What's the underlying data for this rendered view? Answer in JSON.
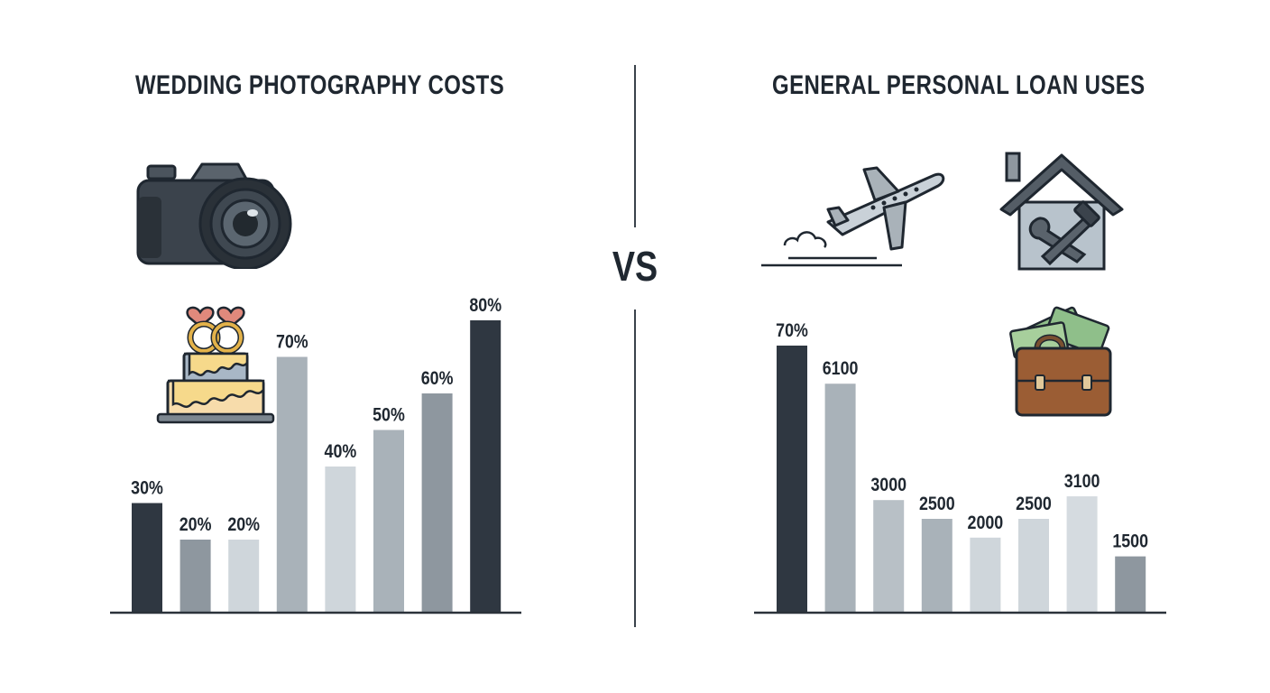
{
  "vs_label": "VS",
  "colors": {
    "darkest": "#2f3741",
    "dark": "#8e979f",
    "medium": "#a9b2b9",
    "light": "#cfd6db",
    "text": "#1f2730",
    "axis": "#2b323a"
  },
  "icons": {
    "left": [
      "camera-icon",
      "wedding-cake-icon"
    ],
    "right": [
      "airplane-icon",
      "home-repair-icon",
      "money-briefcase-icon"
    ]
  },
  "chart_data": [
    {
      "type": "bar",
      "title": "WEDDING PHOTOGRAPHY COSTS",
      "xlabel": "",
      "ylabel": "",
      "grid": false,
      "values": [
        30,
        20,
        20,
        70,
        40,
        50,
        60,
        80
      ],
      "labels": [
        "30%",
        "20%",
        "20%",
        "70%",
        "40%",
        "50%",
        "60%",
        "80%"
      ],
      "colors": [
        "#2f3741",
        "#8e979f",
        "#cfd6db",
        "#a9b2b9",
        "#cfd6db",
        "#a9b2b9",
        "#8e979f",
        "#2f3741"
      ]
    },
    {
      "type": "bar",
      "title": "GENERAL PERSONAL LOAN USES",
      "xlabel": "",
      "ylabel": "",
      "grid": false,
      "values": [
        70,
        6100,
        3000,
        2500,
        2000,
        2500,
        3100,
        1500
      ],
      "labels": [
        "70%",
        "6100",
        "3000",
        "2500",
        "2000",
        "2500",
        "3100",
        "1500"
      ],
      "colors": [
        "#2f3741",
        "#a9b2b9",
        "#b8c0c6",
        "#a9b2b9",
        "#cfd6db",
        "#cfd6db",
        "#d5dbe0",
        "#8e979f"
      ]
    }
  ]
}
